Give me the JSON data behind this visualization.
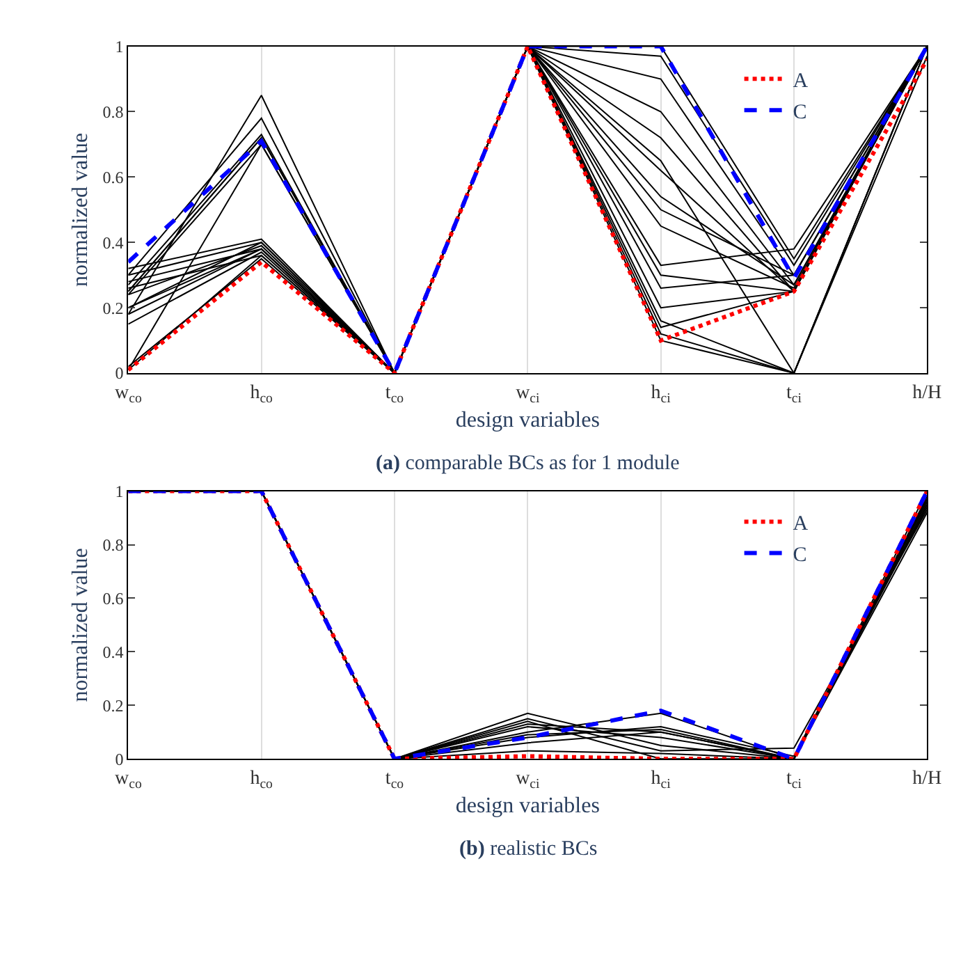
{
  "chart_data": [
    {
      "type": "line",
      "title": "(a) comparable BCs as for 1 module",
      "xlabel": "design variables",
      "ylabel": "normalized value",
      "categories": [
        "w$_{co}$",
        "h$_{co}$",
        "t$_{co}$",
        "w$_{ci}$",
        "h$_{ci}$",
        "t$_{ci}$",
        "h/H"
      ],
      "ylim": [
        0,
        1
      ],
      "yticks": [
        0,
        0.2,
        0.4,
        0.6,
        0.8,
        1
      ],
      "grid": "x",
      "legend": "top right",
      "marker": "none",
      "series": [
        {
          "color": "#000000",
          "line_style": "solid",
          "values": [
            0.25,
            0.72,
            0,
            1,
            1,
            0.35,
            1
          ]
        },
        {
          "color": "#000000",
          "line_style": "solid",
          "values": [
            0.27,
            0.73,
            0,
            1,
            0.97,
            0.33,
            1
          ]
        },
        {
          "color": "#000000",
          "line_style": "solid",
          "values": [
            0.18,
            0.85,
            0,
            1,
            0.9,
            0.3,
            1
          ]
        },
        {
          "color": "#000000",
          "line_style": "solid",
          "values": [
            0.3,
            0.78,
            0,
            1,
            0.8,
            0.27,
            1
          ]
        },
        {
          "color": "#000000",
          "line_style": "solid",
          "values": [
            0.24,
            0.7,
            0,
            1,
            0.72,
            0.25,
            1
          ]
        },
        {
          "color": "#000000",
          "line_style": "solid",
          "values": [
            0.2,
            0.4,
            0,
            1,
            0.62,
            0.25,
            1
          ]
        },
        {
          "color": "#000000",
          "line_style": "solid",
          "values": [
            0.28,
            0.38,
            0,
            1,
            0.54,
            0.27,
            1
          ]
        },
        {
          "color": "#000000",
          "line_style": "solid",
          "values": [
            0.32,
            0.41,
            0,
            1,
            0.5,
            0.3,
            1
          ]
        },
        {
          "color": "#000000",
          "line_style": "solid",
          "values": [
            0.01,
            0.7,
            0,
            1,
            0.45,
            0.26,
            1
          ]
        },
        {
          "color": "#000000",
          "line_style": "solid",
          "values": [
            0.15,
            0.37,
            0,
            1,
            0.3,
            0.25,
            1
          ]
        },
        {
          "color": "#000000",
          "line_style": "solid",
          "values": [
            0.24,
            0.39,
            0,
            1,
            0.26,
            0.3,
            1
          ]
        },
        {
          "color": "#000000",
          "line_style": "solid",
          "values": [
            0.01,
            0.36,
            0,
            1,
            0.2,
            0.25,
            1
          ]
        },
        {
          "color": "#000000",
          "line_style": "solid",
          "values": [
            0.18,
            0.38,
            0,
            1,
            0.16,
            0,
            1
          ]
        },
        {
          "color": "#000000",
          "line_style": "solid",
          "values": [
            0.26,
            0.36,
            0,
            1,
            0.1,
            0,
            1
          ]
        },
        {
          "color": "#000000",
          "line_style": "solid",
          "values": [
            0.02,
            0.35,
            0,
            1,
            0.12,
            0,
            0.97
          ]
        },
        {
          "color": "#000000",
          "line_style": "solid",
          "values": [
            0.3,
            0.4,
            0,
            1,
            0.33,
            0.38,
            1
          ]
        },
        {
          "color": "#000000",
          "line_style": "solid",
          "values": [
            0.2,
            0.38,
            0,
            1,
            0.14,
            0.25,
            1
          ]
        },
        {
          "color": "#000000",
          "line_style": "solid",
          "values": [
            0.25,
            0.72,
            0,
            1,
            0.65,
            0,
            1
          ]
        },
        {
          "name": "A",
          "color": "#ff0000",
          "line_style": "dotted",
          "values": [
            0.01,
            0.34,
            0,
            1,
            0.1,
            0.25,
            0.96
          ]
        },
        {
          "name": "C",
          "color": "#0000ff",
          "line_style": "dashed",
          "values": [
            0.34,
            0.71,
            0,
            1,
            1,
            0.29,
            1
          ]
        }
      ]
    },
    {
      "type": "line",
      "title": "(b) realistic BCs",
      "xlabel": "design variables",
      "ylabel": "normalized value",
      "categories": [
        "w$_{co}$",
        "h$_{co}$",
        "t$_{co}$",
        "w$_{ci}$",
        "h$_{ci}$",
        "t$_{ci}$",
        "h/H"
      ],
      "ylim": [
        0,
        1
      ],
      "yticks": [
        0,
        0.2,
        0.4,
        0.6,
        0.8,
        1
      ],
      "grid": "x",
      "legend": "top right",
      "marker": "none",
      "series": [
        {
          "color": "#000000",
          "line_style": "solid",
          "values": [
            1,
            1,
            0,
            0.17,
            0.05,
            0,
            0.95
          ]
        },
        {
          "color": "#000000",
          "line_style": "solid",
          "values": [
            1,
            1,
            0,
            0.15,
            0.03,
            0.04,
            0.93
          ]
        },
        {
          "color": "#000000",
          "line_style": "solid",
          "values": [
            1,
            1,
            0,
            0.13,
            0.1,
            0,
            0.97
          ]
        },
        {
          "color": "#000000",
          "line_style": "solid",
          "values": [
            1,
            1,
            0,
            0.1,
            0.17,
            0,
            1
          ]
        },
        {
          "color": "#000000",
          "line_style": "solid",
          "values": [
            1,
            1,
            0,
            0.08,
            0.12,
            0.01,
            0.96
          ]
        },
        {
          "color": "#000000",
          "line_style": "solid",
          "values": [
            1,
            1,
            0,
            0.06,
            0.1,
            0,
            0.94
          ]
        },
        {
          "color": "#000000",
          "line_style": "solid",
          "values": [
            1,
            1,
            0,
            0.12,
            0.08,
            0,
            0.98
          ]
        },
        {
          "color": "#000000",
          "line_style": "solid",
          "values": [
            1,
            1,
            0,
            0.03,
            0.02,
            0,
            0.95
          ]
        },
        {
          "color": "#000000",
          "line_style": "solid",
          "values": [
            1,
            1,
            0,
            0.14,
            0,
            0,
            0.92
          ]
        },
        {
          "color": "#000000",
          "line_style": "solid",
          "values": [
            1,
            1,
            0,
            0.09,
            0.11,
            0,
            0.97
          ]
        },
        {
          "name": "A",
          "color": "#ff0000",
          "line_style": "dotted",
          "values": [
            1,
            1,
            0,
            0.01,
            0,
            0,
            1
          ]
        },
        {
          "name": "C",
          "color": "#0000ff",
          "line_style": "dashed",
          "values": [
            1,
            1,
            0,
            0.08,
            0.18,
            0,
            1
          ]
        }
      ]
    }
  ]
}
